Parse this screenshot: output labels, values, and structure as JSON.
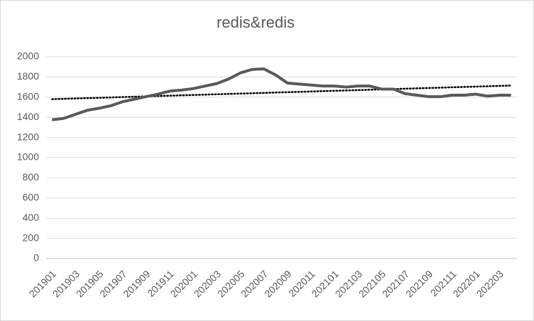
{
  "chart_data": {
    "type": "line",
    "title": "redis&redis",
    "categories": [
      "201901",
      null,
      "201903",
      null,
      "201905",
      null,
      "201907",
      null,
      "201909",
      null,
      "201911",
      null,
      "202001",
      null,
      "202003",
      null,
      "202005",
      null,
      "202007",
      null,
      "202009",
      null,
      "202011",
      null,
      "202101",
      null,
      "202103",
      null,
      "202105",
      null,
      "202107",
      null,
      "202109",
      null,
      "202111",
      null,
      "202201",
      null,
      "202203",
      null
    ],
    "series": [
      {
        "color": "#595959",
        "values": [
          1375,
          1390,
          1430,
          1470,
          1490,
          1515,
          1555,
          1580,
          1605,
          1630,
          1660,
          1670,
          1685,
          1710,
          1735,
          1780,
          1840,
          1875,
          1880,
          1820,
          1740,
          1730,
          1720,
          1710,
          1710,
          1700,
          1710,
          1710,
          1680,
          1680,
          1635,
          1620,
          1605,
          1605,
          1620,
          1620,
          1630,
          1610,
          1620,
          1620
        ]
      }
    ],
    "trendline": {
      "color": "#000000",
      "values": [
        1580,
        1715
      ]
    },
    "ylim": [
      0,
      2000
    ],
    "yticks": [
      0,
      200,
      400,
      600,
      800,
      1000,
      1200,
      1400,
      1600,
      1800,
      2000
    ],
    "grid": true
  }
}
